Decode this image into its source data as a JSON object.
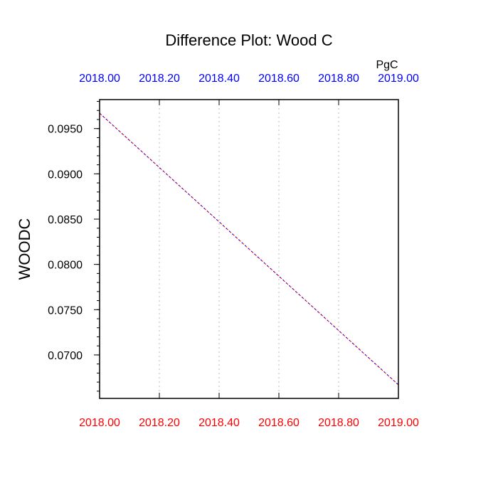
{
  "chart_data": {
    "type": "line",
    "title": "Difference Plot: Wood C",
    "units": "PgC",
    "xlabel": "",
    "ylabel": "WOODC",
    "xlim": [
      2018.0,
      2019.0
    ],
    "ylim": [
      0.0652,
      0.0982
    ],
    "x_ticks": [
      2018.0,
      2018.2,
      2018.4,
      2018.6,
      2018.8,
      2019.0
    ],
    "x_tick_labels": [
      "2018.00",
      "2018.20",
      "2018.40",
      "2018.60",
      "2018.80",
      "2019.00"
    ],
    "y_ticks": [
      0.07,
      0.075,
      0.08,
      0.085,
      0.09,
      0.095
    ],
    "y_tick_labels": [
      "0.0700",
      "0.0750",
      "0.0800",
      "0.0850",
      "0.0900",
      "0.0950"
    ],
    "y_minor_step": 0.001,
    "x_grid": true,
    "y_grid": false,
    "colors": {
      "top_axis_labels": "#0000ff",
      "bottom_axis_labels": "#ff0000",
      "series_a": "#ff0000",
      "series_b": "#0000ff",
      "grid": "#bbbbbb"
    },
    "series": [
      {
        "x": [
          2018.0,
          2019.0
        ],
        "values": [
          0.0967,
          0.0667
        ],
        "color": "#ff0000"
      },
      {
        "x": [
          2018.0,
          2019.0
        ],
        "values": [
          0.0967,
          0.0667
        ],
        "color": "#0000ff"
      }
    ]
  }
}
